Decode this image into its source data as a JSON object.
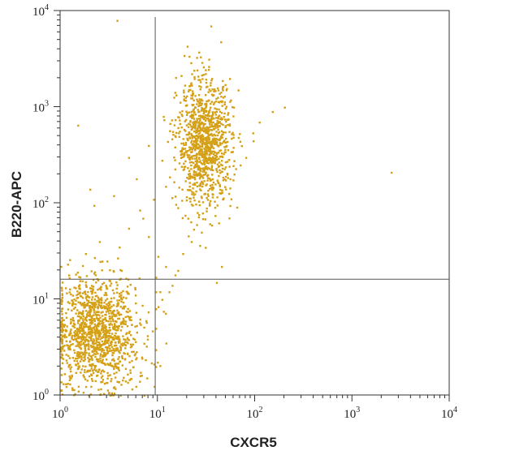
{
  "chart_data": {
    "type": "scatter",
    "title": "",
    "xlabel": "CXCR5",
    "ylabel": "B220-APC",
    "xscale": "log",
    "yscale": "log",
    "xlim": [
      1,
      10000
    ],
    "ylim": [
      1,
      10000
    ],
    "x_tick_labels": [
      {
        "base": "10",
        "exp": "0"
      },
      {
        "base": "10",
        "exp": "1"
      },
      {
        "base": "10",
        "exp": "2"
      },
      {
        "base": "10",
        "exp": "3"
      },
      {
        "base": "10",
        "exp": "4"
      }
    ],
    "y_tick_labels": [
      {
        "base": "10",
        "exp": "0"
      },
      {
        "base": "10",
        "exp": "1"
      },
      {
        "base": "10",
        "exp": "2"
      },
      {
        "base": "10",
        "exp": "3"
      },
      {
        "base": "10",
        "exp": "4"
      }
    ],
    "gates": {
      "x": 9.5,
      "y": 16
    },
    "point_color": "#D4A017",
    "grid": false,
    "legend": "none",
    "populations": [
      {
        "center_x": 2.3,
        "center_y": 4.5,
        "spread_log_x": 0.22,
        "spread_log_y": 0.28,
        "count": 1300
      },
      {
        "center_x": 30,
        "center_y": 420,
        "spread_log_x": 0.14,
        "spread_log_y": 0.32,
        "count": 1100
      }
    ],
    "scattered_points": [
      [
        200,
        1000
      ],
      [
        2500,
        210
      ],
      [
        35,
        7000
      ],
      [
        20,
        4300
      ],
      [
        150,
        900
      ],
      [
        110,
        700
      ],
      [
        1.5,
        650
      ],
      [
        2,
        140
      ],
      [
        3.5,
        120
      ],
      [
        5,
        300
      ],
      [
        6,
        180
      ],
      [
        7,
        70
      ],
      [
        2.5,
        40
      ],
      [
        4,
        35
      ],
      [
        1.8,
        30
      ],
      [
        3,
        25
      ],
      [
        5,
        55
      ],
      [
        8,
        45
      ],
      [
        10,
        28
      ],
      [
        12,
        22
      ],
      [
        15,
        18
      ],
      [
        18,
        30
      ],
      [
        22,
        40
      ],
      [
        25,
        60
      ],
      [
        14,
        14
      ],
      [
        11,
        10
      ],
      [
        13,
        12
      ],
      [
        16,
        20
      ],
      [
        9.5,
        17
      ],
      [
        9.5,
        12
      ],
      [
        9.5,
        8
      ],
      [
        9.5,
        5
      ],
      [
        9.5,
        3
      ],
      [
        9.5,
        2
      ],
      [
        40,
        15
      ],
      [
        45,
        22
      ],
      [
        3.8,
        8000
      ],
      [
        2.2,
        95
      ],
      [
        6.5,
        85
      ],
      [
        9,
        110
      ],
      [
        12,
        150
      ],
      [
        70,
        250
      ],
      [
        80,
        300
      ],
      [
        55,
        180
      ],
      [
        60,
        1000
      ],
      [
        8,
        400
      ],
      [
        11,
        280
      ],
      [
        16,
        90
      ],
      [
        19,
        75
      ],
      [
        28,
        50
      ],
      [
        4.2,
        20
      ],
      [
        3.2,
        14
      ]
    ]
  }
}
